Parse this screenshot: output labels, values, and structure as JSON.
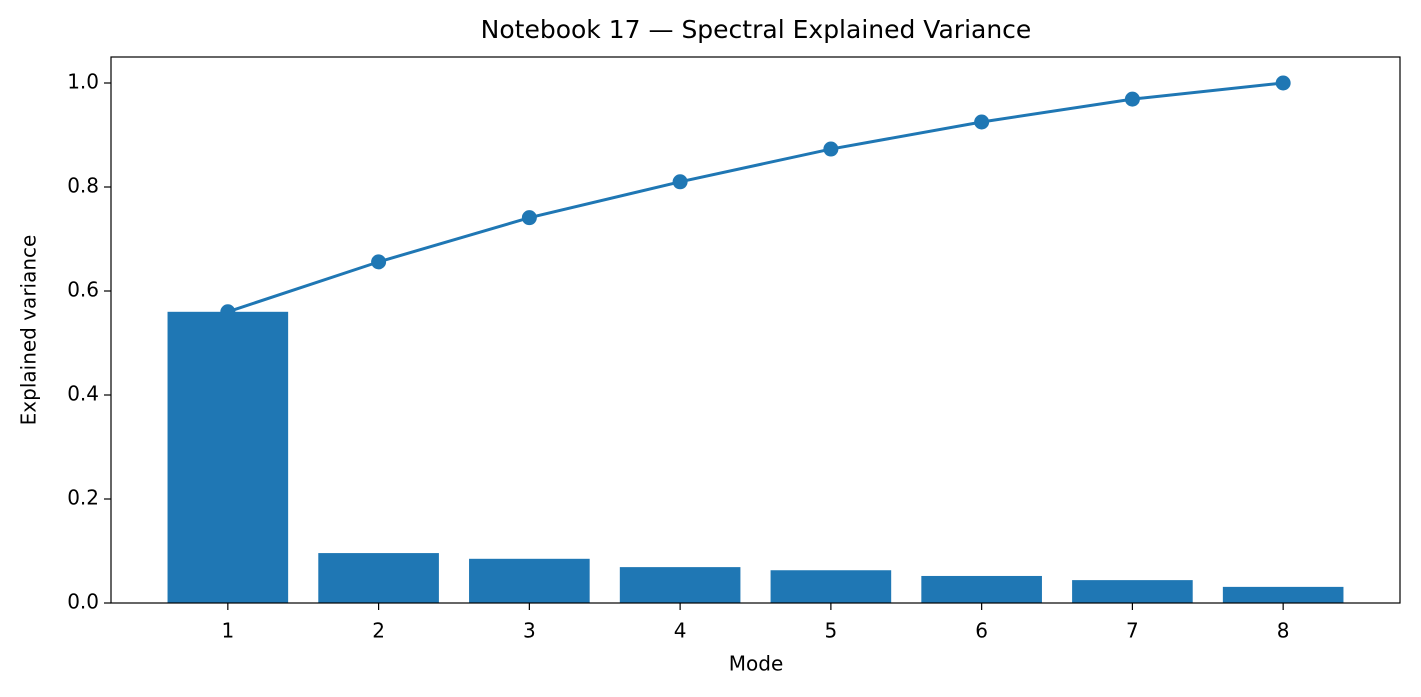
{
  "chart_data": {
    "type": "combo",
    "title": "Notebook 17 — Spectral Explained Variance",
    "x_label": "Mode",
    "y_label": "Explained variance",
    "x": [
      1,
      2,
      3,
      4,
      5,
      6,
      7,
      8
    ],
    "xlim": [
      0.225,
      8.775
    ],
    "xticks": [
      1,
      2,
      3,
      4,
      5,
      6,
      7,
      8
    ],
    "ylim": [
      0,
      1.05
    ],
    "yticks": [
      {
        "value": 0,
        "label": "0.0"
      },
      {
        "value": 0.2,
        "label": "0.2"
      },
      {
        "value": 0.4,
        "label": "0.4"
      },
      {
        "value": 0.6,
        "label": "0.6"
      },
      {
        "value": 0.8,
        "label": "0.8"
      },
      {
        "value": 1,
        "label": "1.0"
      }
    ],
    "grid": false,
    "series": [
      {
        "type": "bar",
        "color": "#1f77b4",
        "values": [
          0.56,
          0.096,
          0.085,
          0.069,
          0.063,
          0.052,
          0.044,
          0.031
        ]
      },
      {
        "type": "line",
        "color": "#1f77b4",
        "values": [
          0.56,
          0.656,
          0.741,
          0.81,
          0.873,
          0.925,
          0.969,
          1.0
        ]
      }
    ]
  }
}
